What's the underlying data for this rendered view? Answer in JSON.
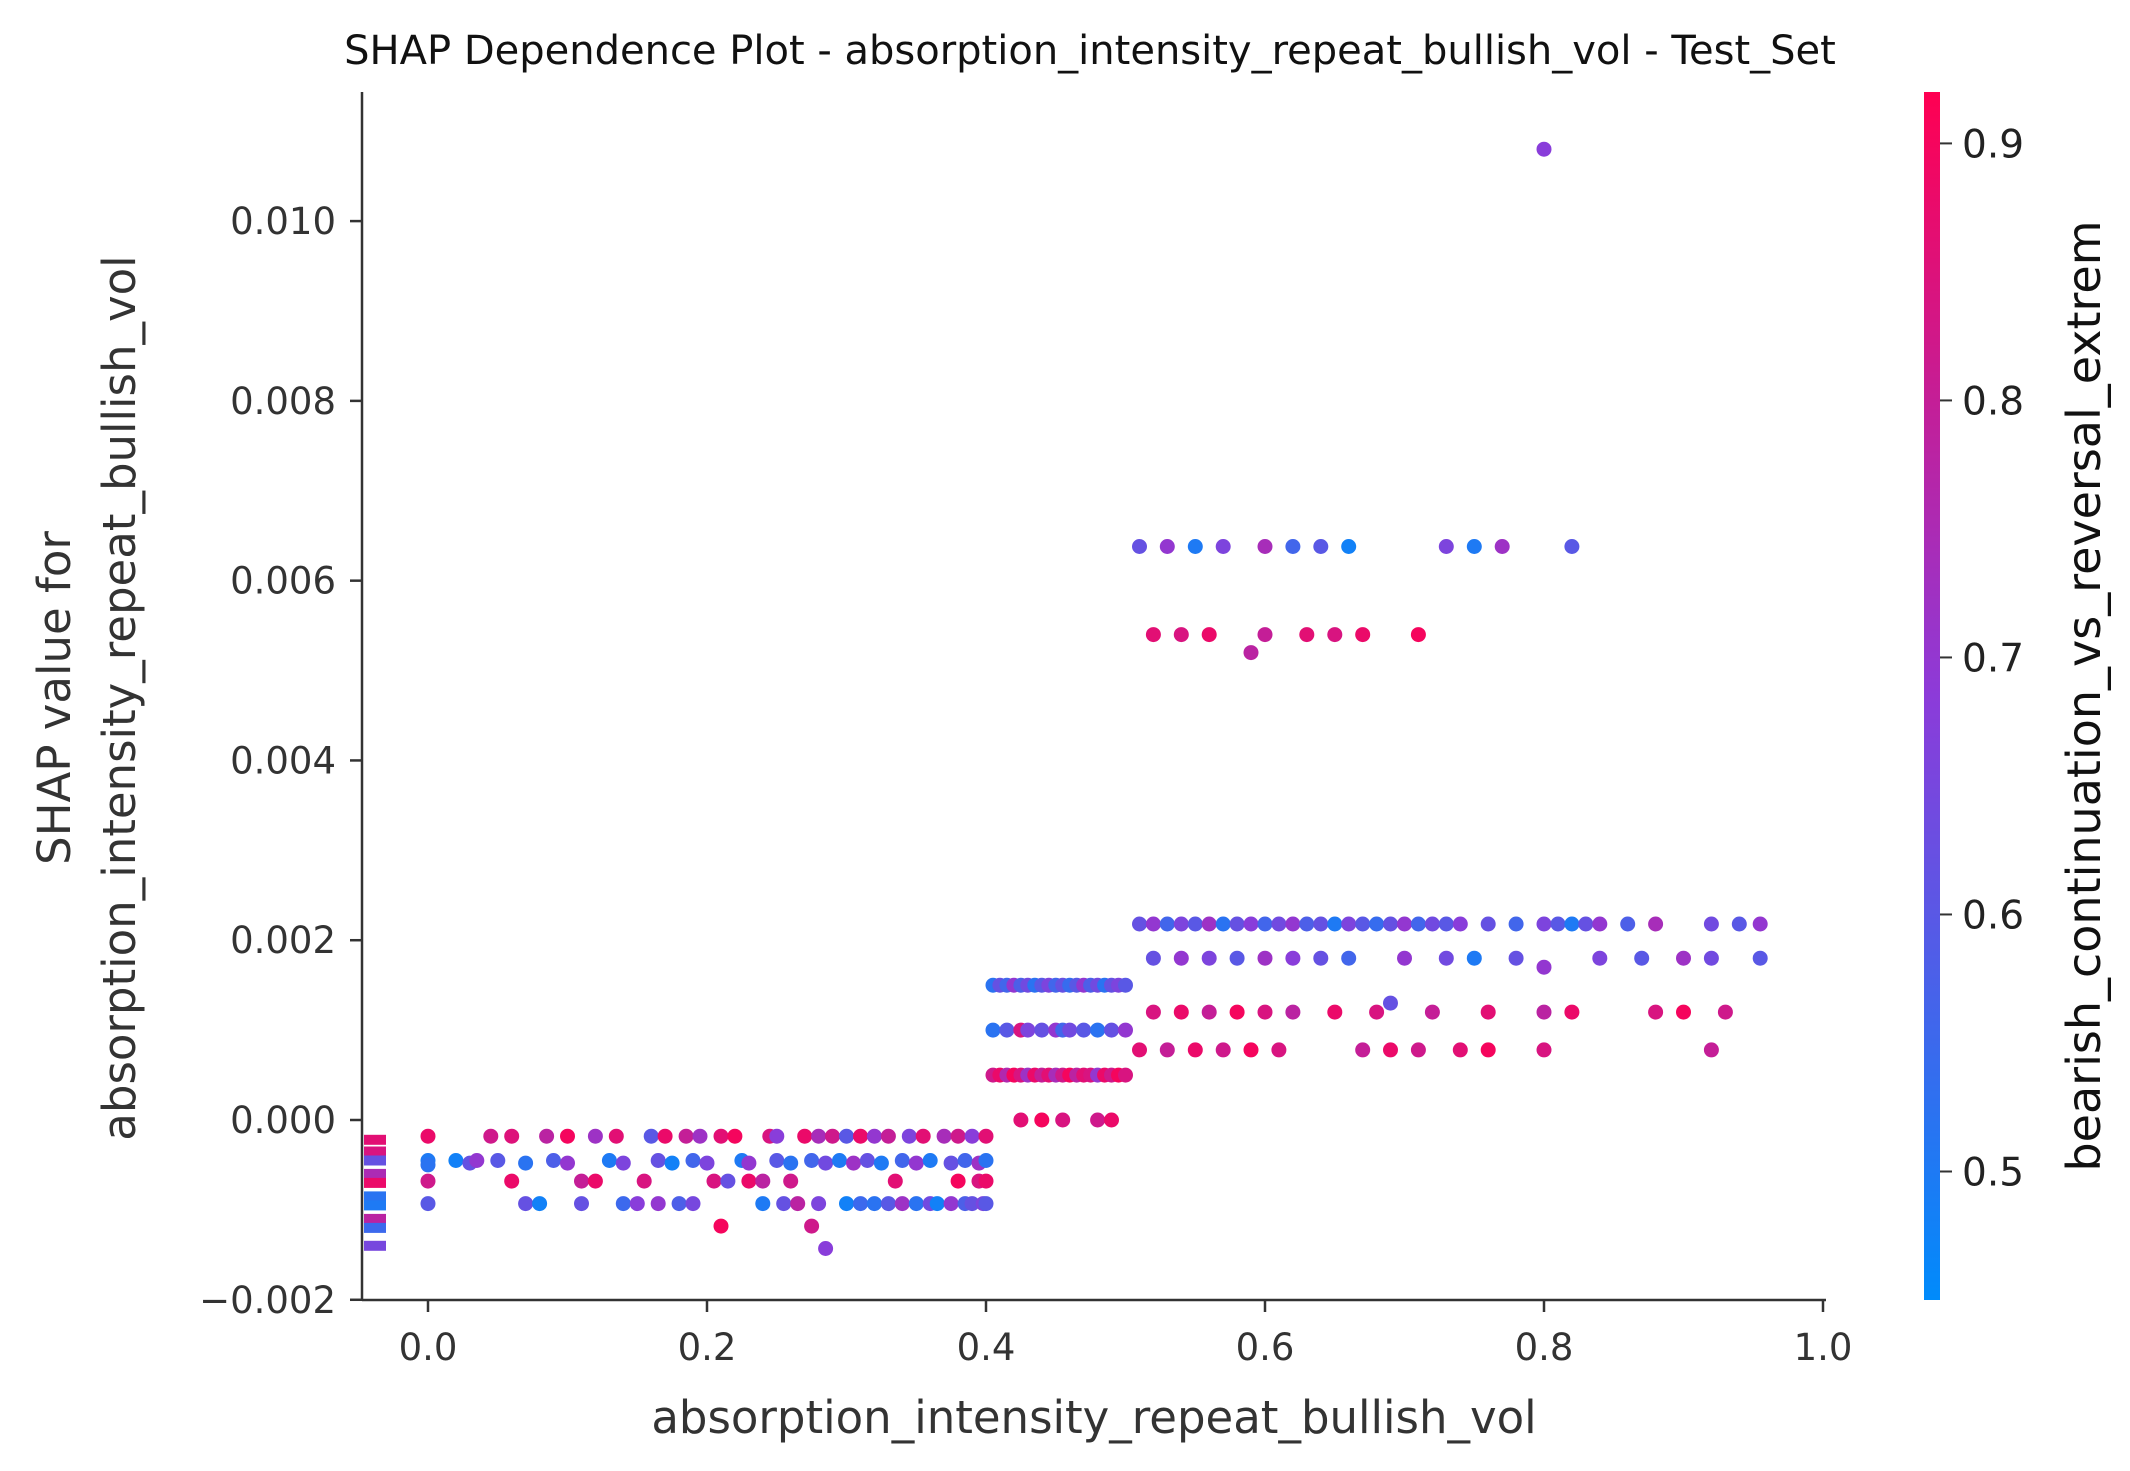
{
  "chart_data": {
    "type": "scatter",
    "title": "SHAP Dependence Plot - absorption_intensity_repeat_bullish_vol - Test_Set",
    "xlabel": "absorption_intensity_repeat_bullish_vol",
    "ylabel_line1": "SHAP value for",
    "ylabel_line2": "absorption_intensity_repeat_bullish_vol",
    "xlim": [
      -0.06,
      1.0
    ],
    "ylim": [
      -0.00203,
      0.0114
    ],
    "x_ticks": [
      0.0,
      0.2,
      0.4,
      0.6,
      0.8,
      1.0
    ],
    "x_tick_labels": [
      "0.0",
      "0.2",
      "0.4",
      "0.6",
      "0.8",
      "1.0"
    ],
    "y_ticks": [
      -0.002,
      0.0,
      0.002,
      0.004,
      0.006,
      0.008,
      0.01
    ],
    "y_tick_labels": [
      "−0.002",
      "0.000",
      "0.002",
      "0.004",
      "0.006",
      "0.008",
      "0.010"
    ],
    "grid": false,
    "colorbar": {
      "label": "bearish_continuation_vs_reversal_extrem",
      "range": [
        0.45,
        0.92
      ],
      "ticks": [
        0.5,
        0.6,
        0.7,
        0.8,
        0.9
      ],
      "tick_labels": [
        "0.5",
        "0.6",
        "0.7",
        "0.8",
        "0.9"
      ],
      "color_low": "#008bfb",
      "color_mid": "#8c3bd9",
      "color_high": "#ff0052"
    },
    "missing_value_markers": [
      {
        "y": -0.00022,
        "c": 0.86
      },
      {
        "y": -0.00035,
        "c": 0.84
      },
      {
        "y": -0.00045,
        "c": 0.62
      },
      {
        "y": -0.0006,
        "c": 0.75
      },
      {
        "y": -0.0007,
        "c": 0.88
      },
      {
        "y": -0.00085,
        "c": 0.52
      },
      {
        "y": -0.00095,
        "c": 0.5
      },
      {
        "y": -0.0011,
        "c": 0.78
      },
      {
        "y": -0.0012,
        "c": 0.55
      },
      {
        "y": -0.0014,
        "c": 0.65
      }
    ],
    "points": [
      [
        0.0,
        -0.00018,
        0.88
      ],
      [
        0.0,
        -0.00045,
        0.5
      ],
      [
        0.0,
        -0.0005,
        0.52
      ],
      [
        0.0,
        -0.00068,
        0.82
      ],
      [
        0.0,
        -0.00093,
        0.6
      ],
      [
        0.02,
        -0.00045,
        0.48
      ],
      [
        0.03,
        -0.00048,
        0.62
      ],
      [
        0.035,
        -0.00045,
        0.7
      ],
      [
        0.045,
        -0.00018,
        0.82
      ],
      [
        0.06,
        -0.00018,
        0.85
      ],
      [
        0.05,
        -0.00045,
        0.6
      ],
      [
        0.06,
        -0.00068,
        0.88
      ],
      [
        0.07,
        -0.00048,
        0.52
      ],
      [
        0.07,
        -0.00093,
        0.62
      ],
      [
        0.08,
        -0.00093,
        0.48
      ],
      [
        0.085,
        -0.00018,
        0.78
      ],
      [
        0.1,
        -0.00018,
        0.9
      ],
      [
        0.09,
        -0.00045,
        0.58
      ],
      [
        0.1,
        -0.00048,
        0.7
      ],
      [
        0.11,
        -0.00093,
        0.62
      ],
      [
        0.11,
        -0.00068,
        0.8
      ],
      [
        0.12,
        -0.00068,
        0.88
      ],
      [
        0.12,
        -0.00018,
        0.72
      ],
      [
        0.135,
        -0.00018,
        0.86
      ],
      [
        0.13,
        -0.00045,
        0.5
      ],
      [
        0.14,
        -0.00048,
        0.66
      ],
      [
        0.14,
        -0.00093,
        0.55
      ],
      [
        0.15,
        -0.00093,
        0.68
      ],
      [
        0.155,
        -0.00068,
        0.84
      ],
      [
        0.16,
        -0.00018,
        0.6
      ],
      [
        0.17,
        -0.00018,
        0.88
      ],
      [
        0.165,
        -0.00045,
        0.62
      ],
      [
        0.175,
        -0.00048,
        0.48
      ],
      [
        0.165,
        -0.00093,
        0.7
      ],
      [
        0.18,
        -0.00093,
        0.58
      ],
      [
        0.19,
        -0.00093,
        0.65
      ],
      [
        0.185,
        -0.00018,
        0.8
      ],
      [
        0.195,
        -0.00018,
        0.72
      ],
      [
        0.19,
        -0.00045,
        0.56
      ],
      [
        0.2,
        -0.00048,
        0.66
      ],
      [
        0.205,
        -0.00068,
        0.84
      ],
      [
        0.21,
        -0.00118,
        0.9
      ],
      [
        0.215,
        -0.00068,
        0.62
      ],
      [
        0.21,
        -0.00018,
        0.86
      ],
      [
        0.22,
        -0.00018,
        0.9
      ],
      [
        0.225,
        -0.00045,
        0.5
      ],
      [
        0.23,
        -0.00048,
        0.7
      ],
      [
        0.23,
        -0.00068,
        0.88
      ],
      [
        0.24,
        -0.00068,
        0.78
      ],
      [
        0.24,
        -0.00093,
        0.5
      ],
      [
        0.245,
        -0.00018,
        0.84
      ],
      [
        0.25,
        -0.00018,
        0.68
      ],
      [
        0.25,
        -0.00045,
        0.6
      ],
      [
        0.26,
        -0.00048,
        0.52
      ],
      [
        0.255,
        -0.00093,
        0.62
      ],
      [
        0.26,
        -0.00068,
        0.82
      ],
      [
        0.265,
        -0.00093,
        0.78
      ],
      [
        0.27,
        -0.00018,
        0.88
      ],
      [
        0.28,
        -0.00018,
        0.74
      ],
      [
        0.275,
        -0.00045,
        0.56
      ],
      [
        0.285,
        -0.00048,
        0.64
      ],
      [
        0.275,
        -0.00118,
        0.82
      ],
      [
        0.285,
        -0.00143,
        0.68
      ],
      [
        0.28,
        -0.00093,
        0.66
      ],
      [
        0.29,
        -0.00018,
        0.82
      ],
      [
        0.3,
        -0.00018,
        0.6
      ],
      [
        0.295,
        -0.00045,
        0.5
      ],
      [
        0.305,
        -0.00048,
        0.72
      ],
      [
        0.3,
        -0.00093,
        0.48
      ],
      [
        0.31,
        -0.00093,
        0.55
      ],
      [
        0.32,
        -0.00093,
        0.52
      ],
      [
        0.31,
        -0.00018,
        0.88
      ],
      [
        0.32,
        -0.00018,
        0.7
      ],
      [
        0.315,
        -0.00045,
        0.62
      ],
      [
        0.325,
        -0.00048,
        0.5
      ],
      [
        0.33,
        -0.00093,
        0.6
      ],
      [
        0.34,
        -0.00093,
        0.72
      ],
      [
        0.335,
        -0.00068,
        0.86
      ],
      [
        0.33,
        -0.00018,
        0.8
      ],
      [
        0.345,
        -0.00018,
        0.66
      ],
      [
        0.34,
        -0.00045,
        0.56
      ],
      [
        0.35,
        -0.00048,
        0.7
      ],
      [
        0.35,
        -0.00093,
        0.52
      ],
      [
        0.36,
        -0.00093,
        0.64
      ],
      [
        0.365,
        -0.00093,
        0.48
      ],
      [
        0.355,
        -0.00018,
        0.86
      ],
      [
        0.37,
        -0.00018,
        0.74
      ],
      [
        0.36,
        -0.00045,
        0.5
      ],
      [
        0.375,
        -0.00048,
        0.62
      ],
      [
        0.375,
        -0.00093,
        0.7
      ],
      [
        0.38,
        -0.00068,
        0.9
      ],
      [
        0.385,
        -0.00093,
        0.58
      ],
      [
        0.38,
        -0.00018,
        0.82
      ],
      [
        0.39,
        -0.00018,
        0.68
      ],
      [
        0.385,
        -0.00045,
        0.56
      ],
      [
        0.395,
        -0.00048,
        0.72
      ],
      [
        0.39,
        -0.00093,
        0.62
      ],
      [
        0.395,
        -0.00068,
        0.84
      ],
      [
        0.398,
        -0.00093,
        0.66
      ],
      [
        0.4,
        -0.00018,
        0.86
      ],
      [
        0.4,
        -0.00045,
        0.52
      ],
      [
        0.4,
        -0.00068,
        0.88
      ],
      [
        0.4,
        -0.00093,
        0.6
      ],
      [
        0.405,
        0.0015,
        0.52
      ],
      [
        0.41,
        0.0015,
        0.62
      ],
      [
        0.415,
        0.0015,
        0.56
      ],
      [
        0.42,
        0.0015,
        0.7
      ],
      [
        0.425,
        0.0015,
        0.58
      ],
      [
        0.43,
        0.0015,
        0.64
      ],
      [
        0.435,
        0.0015,
        0.52
      ],
      [
        0.44,
        0.0015,
        0.6
      ],
      [
        0.445,
        0.0015,
        0.66
      ],
      [
        0.45,
        0.0015,
        0.56
      ],
      [
        0.455,
        0.0015,
        0.62
      ],
      [
        0.46,
        0.0015,
        0.54
      ],
      [
        0.465,
        0.0015,
        0.6
      ],
      [
        0.47,
        0.0015,
        0.7
      ],
      [
        0.475,
        0.0015,
        0.58
      ],
      [
        0.48,
        0.0015,
        0.64
      ],
      [
        0.485,
        0.0015,
        0.52
      ],
      [
        0.49,
        0.0015,
        0.62
      ],
      [
        0.495,
        0.0015,
        0.66
      ],
      [
        0.405,
        0.001,
        0.52
      ],
      [
        0.415,
        0.001,
        0.6
      ],
      [
        0.425,
        0.001,
        0.84
      ],
      [
        0.43,
        0.001,
        0.66
      ],
      [
        0.44,
        0.001,
        0.62
      ],
      [
        0.45,
        0.001,
        0.7
      ],
      [
        0.455,
        0.001,
        0.56
      ],
      [
        0.46,
        0.001,
        0.64
      ],
      [
        0.47,
        0.001,
        0.6
      ],
      [
        0.48,
        0.001,
        0.52
      ],
      [
        0.49,
        0.001,
        0.62
      ],
      [
        0.405,
        0.0005,
        0.82
      ],
      [
        0.41,
        0.0005,
        0.88
      ],
      [
        0.415,
        0.0005,
        0.76
      ],
      [
        0.42,
        0.0005,
        0.9
      ],
      [
        0.425,
        0.0005,
        0.84
      ],
      [
        0.43,
        0.0005,
        0.72
      ],
      [
        0.435,
        0.0005,
        0.88
      ],
      [
        0.44,
        0.0005,
        0.8
      ],
      [
        0.445,
        0.0005,
        0.86
      ],
      [
        0.45,
        0.0005,
        0.74
      ],
      [
        0.455,
        0.0005,
        0.82
      ],
      [
        0.46,
        0.0005,
        0.9
      ],
      [
        0.465,
        0.0005,
        0.78
      ],
      [
        0.47,
        0.0005,
        0.86
      ],
      [
        0.475,
        0.0005,
        0.84
      ],
      [
        0.48,
        0.0005,
        0.7
      ],
      [
        0.485,
        0.0005,
        0.88
      ],
      [
        0.49,
        0.0005,
        0.82
      ],
      [
        0.495,
        0.0005,
        0.9
      ],
      [
        0.425,
        0.0,
        0.86
      ],
      [
        0.44,
        0.0,
        0.9
      ],
      [
        0.455,
        0.0,
        0.84
      ],
      [
        0.48,
        0.0,
        0.82
      ],
      [
        0.49,
        0.0,
        0.88
      ],
      [
        0.5,
        0.0015,
        0.6
      ],
      [
        0.5,
        0.001,
        0.7
      ],
      [
        0.5,
        0.0005,
        0.84
      ],
      [
        0.51,
        0.00218,
        0.62
      ],
      [
        0.52,
        0.00218,
        0.7
      ],
      [
        0.53,
        0.00218,
        0.56
      ],
      [
        0.54,
        0.00218,
        0.66
      ],
      [
        0.55,
        0.00218,
        0.6
      ],
      [
        0.56,
        0.00218,
        0.72
      ],
      [
        0.57,
        0.00218,
        0.52
      ],
      [
        0.58,
        0.00218,
        0.62
      ],
      [
        0.59,
        0.00218,
        0.68
      ],
      [
        0.6,
        0.00218,
        0.56
      ],
      [
        0.61,
        0.00218,
        0.64
      ],
      [
        0.62,
        0.00218,
        0.7
      ],
      [
        0.63,
        0.00218,
        0.58
      ],
      [
        0.64,
        0.00218,
        0.62
      ],
      [
        0.65,
        0.00218,
        0.5
      ],
      [
        0.66,
        0.00218,
        0.66
      ],
      [
        0.67,
        0.00218,
        0.6
      ],
      [
        0.68,
        0.00218,
        0.54
      ],
      [
        0.69,
        0.00218,
        0.62
      ],
      [
        0.7,
        0.00218,
        0.7
      ],
      [
        0.71,
        0.00218,
        0.56
      ],
      [
        0.72,
        0.00218,
        0.64
      ],
      [
        0.73,
        0.00218,
        0.6
      ],
      [
        0.74,
        0.00218,
        0.68
      ],
      [
        0.76,
        0.00218,
        0.62
      ],
      [
        0.78,
        0.00218,
        0.56
      ],
      [
        0.8,
        0.00218,
        0.66
      ],
      [
        0.81,
        0.00218,
        0.6
      ],
      [
        0.82,
        0.00218,
        0.5
      ],
      [
        0.83,
        0.00218,
        0.62
      ],
      [
        0.84,
        0.00218,
        0.7
      ],
      [
        0.86,
        0.00218,
        0.58
      ],
      [
        0.88,
        0.00218,
        0.74
      ],
      [
        0.92,
        0.00218,
        0.64
      ],
      [
        0.94,
        0.00218,
        0.6
      ],
      [
        0.955,
        0.00218,
        0.7
      ],
      [
        0.52,
        0.0018,
        0.62
      ],
      [
        0.54,
        0.0018,
        0.7
      ],
      [
        0.56,
        0.0018,
        0.66
      ],
      [
        0.58,
        0.0018,
        0.6
      ],
      [
        0.6,
        0.0018,
        0.72
      ],
      [
        0.62,
        0.0018,
        0.68
      ],
      [
        0.64,
        0.0018,
        0.62
      ],
      [
        0.66,
        0.0018,
        0.56
      ],
      [
        0.7,
        0.0018,
        0.7
      ],
      [
        0.73,
        0.0018,
        0.64
      ],
      [
        0.75,
        0.0018,
        0.5
      ],
      [
        0.78,
        0.0018,
        0.62
      ],
      [
        0.8,
        0.0017,
        0.7
      ],
      [
        0.84,
        0.0018,
        0.66
      ],
      [
        0.87,
        0.0018,
        0.6
      ],
      [
        0.9,
        0.0018,
        0.72
      ],
      [
        0.92,
        0.0018,
        0.64
      ],
      [
        0.955,
        0.0018,
        0.6
      ],
      [
        0.52,
        0.0012,
        0.84
      ],
      [
        0.54,
        0.0012,
        0.88
      ],
      [
        0.56,
        0.0012,
        0.8
      ],
      [
        0.58,
        0.0012,
        0.9
      ],
      [
        0.6,
        0.0012,
        0.84
      ],
      [
        0.62,
        0.0012,
        0.78
      ],
      [
        0.65,
        0.0012,
        0.88
      ],
      [
        0.68,
        0.0012,
        0.84
      ],
      [
        0.72,
        0.0012,
        0.8
      ],
      [
        0.76,
        0.0012,
        0.86
      ],
      [
        0.8,
        0.0012,
        0.78
      ],
      [
        0.82,
        0.0012,
        0.88
      ],
      [
        0.88,
        0.0012,
        0.84
      ],
      [
        0.9,
        0.0012,
        0.9
      ],
      [
        0.93,
        0.0012,
        0.82
      ],
      [
        0.69,
        0.0013,
        0.62
      ],
      [
        0.51,
        0.00078,
        0.86
      ],
      [
        0.53,
        0.00078,
        0.8
      ],
      [
        0.55,
        0.00078,
        0.88
      ],
      [
        0.57,
        0.00078,
        0.82
      ],
      [
        0.59,
        0.00078,
        0.9
      ],
      [
        0.61,
        0.00078,
        0.84
      ],
      [
        0.67,
        0.00078,
        0.8
      ],
      [
        0.69,
        0.00078,
        0.88
      ],
      [
        0.71,
        0.00078,
        0.82
      ],
      [
        0.74,
        0.00078,
        0.86
      ],
      [
        0.76,
        0.00078,
        0.9
      ],
      [
        0.8,
        0.00078,
        0.84
      ],
      [
        0.92,
        0.00078,
        0.8
      ],
      [
        0.51,
        0.00638,
        0.62
      ],
      [
        0.53,
        0.00638,
        0.7
      ],
      [
        0.55,
        0.00638,
        0.5
      ],
      [
        0.57,
        0.00638,
        0.66
      ],
      [
        0.6,
        0.00638,
        0.74
      ],
      [
        0.62,
        0.00638,
        0.56
      ],
      [
        0.64,
        0.00638,
        0.6
      ],
      [
        0.66,
        0.00638,
        0.48
      ],
      [
        0.73,
        0.00638,
        0.66
      ],
      [
        0.75,
        0.00638,
        0.5
      ],
      [
        0.77,
        0.00638,
        0.72
      ],
      [
        0.82,
        0.00638,
        0.6
      ],
      [
        0.52,
        0.0054,
        0.86
      ],
      [
        0.54,
        0.0054,
        0.84
      ],
      [
        0.56,
        0.0054,
        0.88
      ],
      [
        0.6,
        0.0054,
        0.8
      ],
      [
        0.63,
        0.0054,
        0.86
      ],
      [
        0.65,
        0.0054,
        0.84
      ],
      [
        0.67,
        0.0054,
        0.88
      ],
      [
        0.71,
        0.0054,
        0.9
      ],
      [
        0.59,
        0.0052,
        0.78
      ],
      [
        0.8,
        0.0108,
        0.68
      ]
    ]
  }
}
